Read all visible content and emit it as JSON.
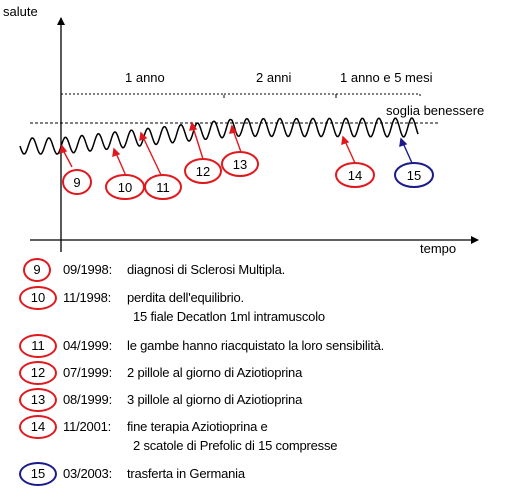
{
  "axes": {
    "y_label": "salute",
    "x_label": "tempo"
  },
  "threshold_label": "soglia benessere",
  "periods": [
    {
      "label": "1 anno"
    },
    {
      "label": "2 anni"
    },
    {
      "label": "1 anno e 5 mesi"
    }
  ],
  "markers": [
    {
      "num": "9",
      "color": "#e0191e"
    },
    {
      "num": "10",
      "color": "#e0191e"
    },
    {
      "num": "11",
      "color": "#e0191e"
    },
    {
      "num": "12",
      "color": "#e0191e"
    },
    {
      "num": "13",
      "color": "#e0191e"
    },
    {
      "num": "14",
      "color": "#e0191e"
    },
    {
      "num": "15",
      "color": "#1a1a8c"
    }
  ],
  "legend": [
    {
      "num": "9",
      "date": "09/1998:",
      "text": "diagnosi di Sclerosi Multipla.",
      "text2": ""
    },
    {
      "num": "10",
      "date": "11/1998:",
      "text": "perdita dell'equilibrio.",
      "text2": "15 fiale Decatlon 1ml intramuscolo"
    },
    {
      "num": "11",
      "date": "04/1999:",
      "text": "le gambe hanno riacquistato la loro sensibilità.",
      "text2": ""
    },
    {
      "num": "12",
      "date": "07/1999:",
      "text": "2 pillole al giorno di Aziotioprina",
      "text2": ""
    },
    {
      "num": "13",
      "date": "08/1999:",
      "text": "3 pillole al giorno di Aziotioprina",
      "text2": ""
    },
    {
      "num": "14",
      "date": "11/2001:",
      "text": "fine terapia Aziotioprina e",
      "text2": "2 scatole di Prefolic di 15 compresse"
    },
    {
      "num": "15",
      "date": "03/2003:",
      "text": "trasferta in Germania",
      "text2": ""
    }
  ]
}
